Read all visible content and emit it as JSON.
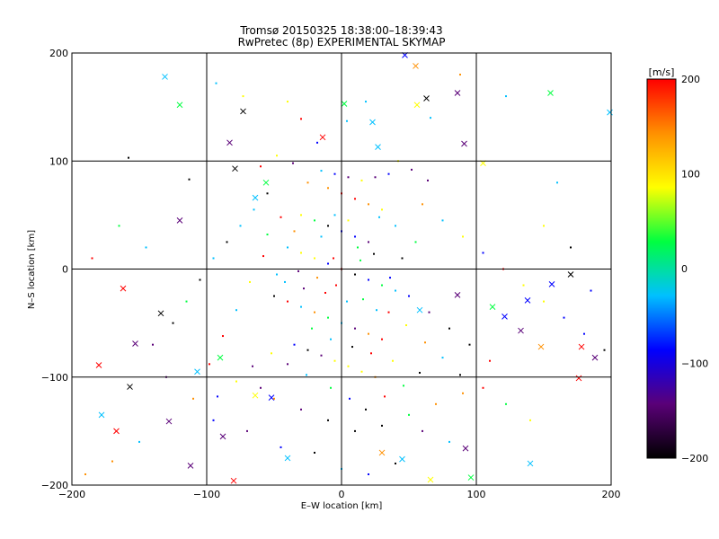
{
  "chart_data": {
    "type": "scatter",
    "title": "Tromsø 20150325 18:38:00–18:39:43",
    "subtitle": "RwPretec (8p) EXPERIMENTAL SKYMAP",
    "xlabel": "E–W location [km]",
    "ylabel": "N–S location [km]",
    "xlim": [
      -200,
      200
    ],
    "ylim": [
      -200,
      200
    ],
    "x_ticks": [
      -200,
      -100,
      0,
      100,
      200
    ],
    "y_ticks": [
      -200,
      -100,
      0,
      100,
      200
    ],
    "x_tick_labels": [
      "−200",
      "−100",
      "0",
      "100",
      "200"
    ],
    "y_tick_labels": [
      "−200",
      "−100",
      "0",
      "100",
      "200"
    ],
    "grid": true,
    "colorbar": {
      "label": "[m/s]",
      "range": [
        -200,
        200
      ],
      "ticks": [
        200,
        100,
        0,
        -100,
        -200
      ],
      "tick_labels": [
        "200",
        "100",
        "0",
        "−100",
        "−200"
      ],
      "colormap": [
        "#000000",
        "#5a0078",
        "#0000ff",
        "#00c0ff",
        "#00ff40",
        "#ffff00",
        "#ff9000",
        "#ff0000"
      ]
    },
    "markers": {
      "dot": "small point",
      "cross": "x"
    },
    "series": [
      {
        "marker": "cross",
        "points": [
          [
            -131,
            178
          ],
          [
            -120,
            152
          ],
          [
            -73,
            146
          ],
          [
            -83,
            117
          ],
          [
            -64,
            66
          ],
          [
            -56,
            80
          ],
          [
            -79,
            93
          ],
          [
            -14,
            122
          ],
          [
            2,
            153
          ],
          [
            23,
            136
          ],
          [
            47,
            198
          ],
          [
            55,
            188
          ],
          [
            56,
            152
          ],
          [
            63,
            158
          ],
          [
            27,
            113
          ],
          [
            91,
            116
          ],
          [
            105,
            98
          ],
          [
            86,
            163
          ],
          [
            155,
            163
          ],
          [
            199,
            145
          ],
          [
            -153,
            -69
          ],
          [
            -134,
            -41
          ],
          [
            -162,
            -18
          ],
          [
            -180,
            -89
          ],
          [
            -157,
            -109
          ],
          [
            -178,
            -135
          ],
          [
            -167,
            -150
          ],
          [
            -128,
            -141
          ],
          [
            -107,
            -95
          ],
          [
            -90,
            -82
          ],
          [
            -64,
            -117
          ],
          [
            -52,
            -119
          ],
          [
            -112,
            -182
          ],
          [
            -80,
            -196
          ],
          [
            58,
            -38
          ],
          [
            86,
            -24
          ],
          [
            112,
            -35
          ],
          [
            121,
            -44
          ],
          [
            133,
            -57
          ],
          [
            148,
            -72
          ],
          [
            138,
            -29
          ],
          [
            156,
            -14
          ],
          [
            170,
            -5
          ],
          [
            178,
            -72
          ],
          [
            188,
            -82
          ],
          [
            176,
            -101
          ],
          [
            140,
            -180
          ],
          [
            92,
            -166
          ],
          [
            96,
            -193
          ],
          [
            -40,
            -175
          ],
          [
            30,
            -170
          ],
          [
            66,
            -195
          ],
          [
            -120,
            45
          ],
          [
            -88,
            -155
          ],
          [
            45,
            -176
          ]
        ]
      },
      {
        "marker": "dot",
        "points": [
          [
            -158,
            103
          ],
          [
            -113,
            83
          ],
          [
            -93,
            172
          ],
          [
            -73,
            160
          ],
          [
            -40,
            155
          ],
          [
            -30,
            139
          ],
          [
            -18,
            117
          ],
          [
            4,
            137
          ],
          [
            18,
            155
          ],
          [
            66,
            140
          ],
          [
            88,
            180
          ],
          [
            122,
            160
          ],
          [
            -15,
            91
          ],
          [
            -5,
            88
          ],
          [
            5,
            85
          ],
          [
            15,
            82
          ],
          [
            25,
            85
          ],
          [
            35,
            88
          ],
          [
            -25,
            80
          ],
          [
            -10,
            75
          ],
          [
            0,
            70
          ],
          [
            10,
            65
          ],
          [
            20,
            60
          ],
          [
            30,
            55
          ],
          [
            -30,
            50
          ],
          [
            -20,
            45
          ],
          [
            -10,
            40
          ],
          [
            0,
            35
          ],
          [
            10,
            30
          ],
          [
            20,
            25
          ],
          [
            -40,
            20
          ],
          [
            -30,
            15
          ],
          [
            -20,
            10
          ],
          [
            -10,
            5
          ],
          [
            0,
            0
          ],
          [
            10,
            -5
          ],
          [
            20,
            -10
          ],
          [
            30,
            -15
          ],
          [
            40,
            -20
          ],
          [
            -50,
            -25
          ],
          [
            -40,
            -30
          ],
          [
            -30,
            -35
          ],
          [
            -20,
            -40
          ],
          [
            -10,
            -45
          ],
          [
            0,
            -50
          ],
          [
            10,
            -55
          ],
          [
            20,
            -60
          ],
          [
            30,
            -65
          ],
          [
            -35,
            -70
          ],
          [
            -25,
            -75
          ],
          [
            -15,
            -80
          ],
          [
            -5,
            -85
          ],
          [
            5,
            -90
          ],
          [
            15,
            -95
          ],
          [
            25,
            -100
          ],
          [
            -60,
            -110
          ],
          [
            -50,
            -120
          ],
          [
            -30,
            -130
          ],
          [
            -10,
            -140
          ],
          [
            10,
            -150
          ],
          [
            30,
            -145
          ],
          [
            50,
            -135
          ],
          [
            70,
            -125
          ],
          [
            90,
            -115
          ],
          [
            60,
            -150
          ],
          [
            80,
            -160
          ],
          [
            40,
            -180
          ],
          [
            20,
            -190
          ],
          [
            0,
            -185
          ],
          [
            -20,
            -170
          ],
          [
            -45,
            -165
          ],
          [
            -70,
            -150
          ],
          [
            -95,
            -140
          ],
          [
            -110,
            -120
          ],
          [
            -130,
            -100
          ],
          [
            -140,
            -70
          ],
          [
            -125,
            -50
          ],
          [
            -115,
            -30
          ],
          [
            -105,
            -10
          ],
          [
            -95,
            10
          ],
          [
            -85,
            25
          ],
          [
            -75,
            40
          ],
          [
            -65,
            55
          ],
          [
            -55,
            70
          ],
          [
            60,
            60
          ],
          [
            75,
            45
          ],
          [
            90,
            30
          ],
          [
            105,
            15
          ],
          [
            120,
            0
          ],
          [
            135,
            -15
          ],
          [
            150,
            -30
          ],
          [
            165,
            -45
          ],
          [
            180,
            -60
          ],
          [
            195,
            -75
          ],
          [
            110,
            -85
          ],
          [
            95,
            -70
          ],
          [
            80,
            -55
          ],
          [
            65,
            -40
          ],
          [
            50,
            -25
          ],
          [
            45,
            10
          ],
          [
            55,
            25
          ],
          [
            40,
            40
          ],
          [
            28,
            48
          ],
          [
            12,
            20
          ],
          [
            -12,
            -22
          ],
          [
            -22,
            -55
          ],
          [
            -8,
            -65
          ],
          [
            8,
            -72
          ],
          [
            22,
            -78
          ],
          [
            38,
            -85
          ],
          [
            -48,
            -5
          ],
          [
            -58,
            12
          ],
          [
            -68,
            -12
          ],
          [
            -78,
            -38
          ],
          [
            -88,
            -62
          ],
          [
            -98,
            -88
          ],
          [
            -15,
            30
          ],
          [
            -5,
            50
          ],
          [
            5,
            45
          ],
          [
            -35,
            35
          ],
          [
            -45,
            48
          ],
          [
            -55,
            32
          ],
          [
            35,
            -40
          ],
          [
            48,
            -52
          ],
          [
            62,
            -68
          ],
          [
            75,
            -82
          ],
          [
            88,
            -98
          ],
          [
            105,
            -110
          ],
          [
            122,
            -125
          ],
          [
            140,
            -140
          ],
          [
            -150,
            -160
          ],
          [
            -170,
            -178
          ],
          [
            -190,
            -190
          ],
          [
            -165,
            40
          ],
          [
            -145,
            20
          ],
          [
            -185,
            10
          ],
          [
            150,
            40
          ],
          [
            170,
            20
          ],
          [
            185,
            -20
          ],
          [
            160,
            80
          ],
          [
            -60,
            95
          ],
          [
            -48,
            105
          ],
          [
            -36,
            98
          ],
          [
            42,
            100
          ],
          [
            52,
            92
          ],
          [
            64,
            82
          ],
          [
            -8,
            -110
          ],
          [
            6,
            -120
          ],
          [
            18,
            -130
          ],
          [
            32,
            -118
          ],
          [
            46,
            -108
          ],
          [
            58,
            -96
          ],
          [
            -26,
            -98
          ],
          [
            -40,
            -88
          ],
          [
            -52,
            -78
          ],
          [
            -66,
            -90
          ],
          [
            -78,
            -104
          ],
          [
            -92,
            -118
          ],
          [
            -6,
            10
          ],
          [
            16,
            -28
          ],
          [
            26,
            -38
          ],
          [
            -18,
            -8
          ],
          [
            -28,
            -18
          ],
          [
            36,
            -8
          ],
          [
            4,
            -30
          ],
          [
            -4,
            -15
          ],
          [
            14,
            8
          ],
          [
            24,
            14
          ],
          [
            -32,
            -2
          ],
          [
            -42,
            -12
          ]
        ]
      }
    ]
  }
}
